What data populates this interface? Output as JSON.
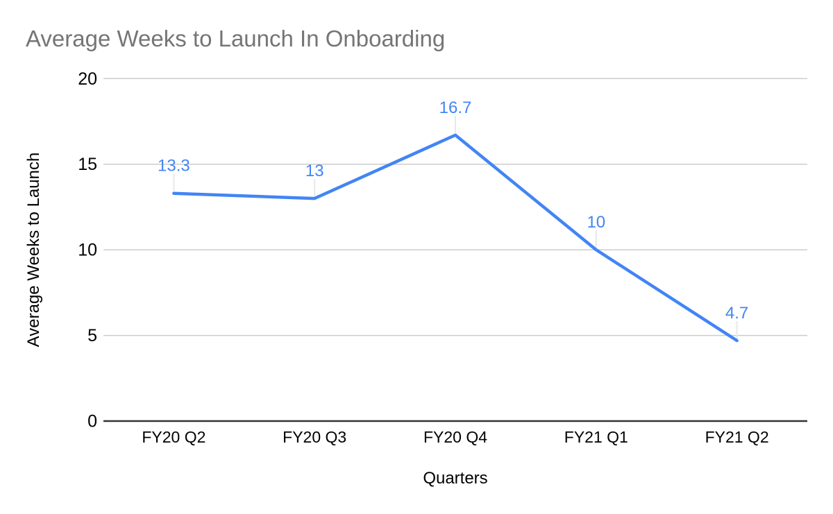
{
  "title": "Average Weeks to Launch In Onboarding",
  "colors": {
    "background": "#ffffff",
    "title_text": "#757575",
    "series_line": "#4285f4",
    "data_label_text": "#4285f4",
    "gridline": "#cccccc",
    "axis_line": "#333333",
    "axis_text": "#000000",
    "leader_line": "#e8e8e8"
  },
  "chart_data": {
    "type": "line",
    "title": "Average Weeks to Launch In Onboarding",
    "xlabel": "Quarters",
    "ylabel": "Average Weeks to Launch",
    "categories": [
      "FY20 Q2",
      "FY20 Q3",
      "FY20 Q4",
      "FY21 Q1",
      "FY21 Q2"
    ],
    "series": [
      {
        "name": "Average Weeks to Launch",
        "values": [
          13.3,
          13,
          16.7,
          10,
          4.7
        ],
        "data_labels": [
          "13.3",
          "13",
          "16.7",
          "10",
          "4.7"
        ]
      }
    ],
    "yticks": [
      0,
      5,
      10,
      15,
      20
    ],
    "ytick_labels": [
      "0",
      "5",
      "10",
      "15",
      "20"
    ],
    "ylim": [
      0,
      20
    ],
    "grid": "horizontal",
    "legend": "none"
  }
}
